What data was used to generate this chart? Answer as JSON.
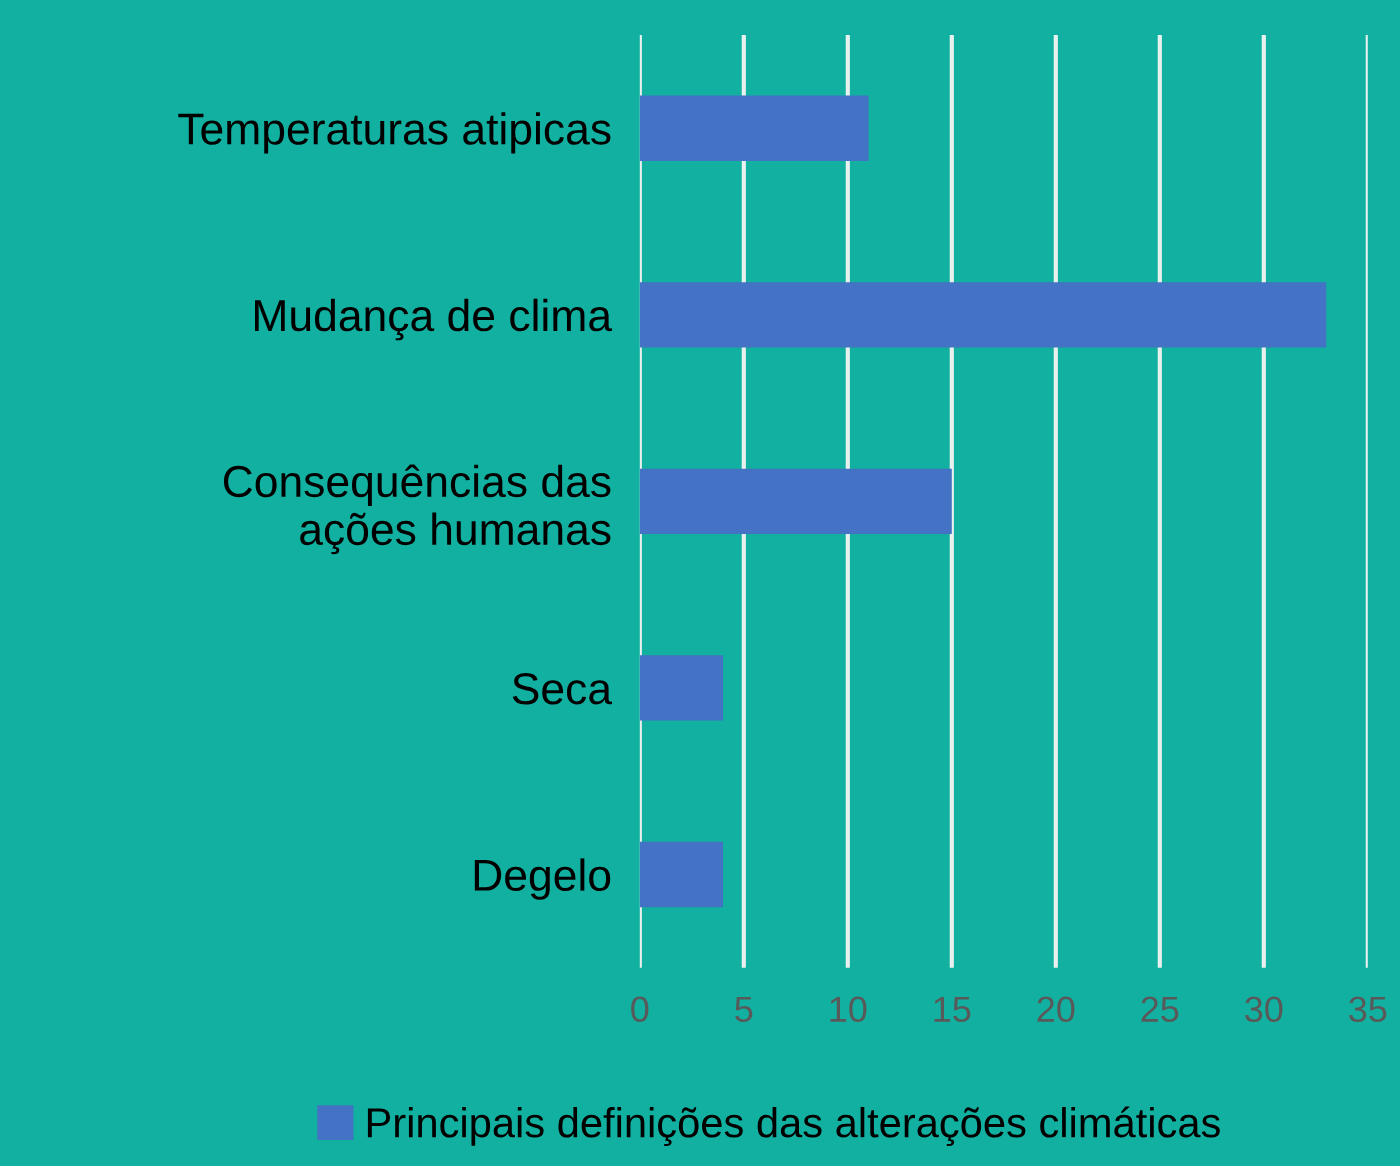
{
  "chart_data": {
    "type": "bar",
    "orientation": "horizontal",
    "categories": [
      "Temperaturas atipicas",
      "Mudança de clima",
      "Consequências das\nações humanas",
      "Seca",
      "Degelo"
    ],
    "series": [
      {
        "name": "Principais definições das alterações climáticas",
        "color": "#4472c4",
        "values": [
          11,
          33,
          15,
          4,
          4
        ]
      }
    ],
    "xlim": [
      0,
      35
    ],
    "xticks": [
      0,
      5,
      10,
      15,
      20,
      25,
      30,
      35
    ],
    "grid": "x",
    "legend": "bottom"
  }
}
